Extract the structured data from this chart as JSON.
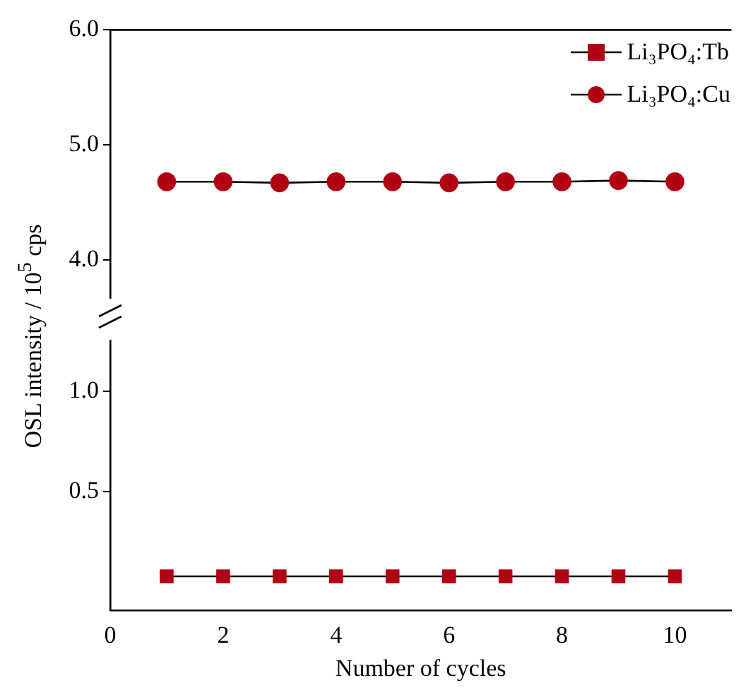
{
  "chart_data": [
    {
      "type": "line",
      "x": [
        1,
        2,
        3,
        4,
        5,
        6,
        7,
        8,
        9,
        10
      ],
      "xlim": [
        0,
        11
      ],
      "xticks": [
        0,
        2,
        4,
        6,
        8,
        10
      ],
      "ylim": [
        3.67,
        6
      ],
      "yticks": [
        {
          "value": 4,
          "label": "4.0"
        },
        {
          "value": 5,
          "label": "5.0"
        },
        {
          "value": 6,
          "label": "6.0"
        }
      ],
      "tick_labels": "y",
      "legend": "top right",
      "grid": false,
      "series": [
        {
          "name": "Li₃PO₄:Tb",
          "color": "#b00012",
          "marker": "square",
          "values": [
            null,
            null,
            null,
            null,
            null,
            null,
            null,
            null,
            null,
            null
          ]
        },
        {
          "name": "Li₃PO₄:Cu",
          "color": "#b00012",
          "marker": "circle",
          "values": [
            4.68,
            4.68,
            4.67,
            4.68,
            4.68,
            4.67,
            4.68,
            4.68,
            4.69,
            4.68
          ]
        }
      ]
    },
    {
      "type": "line",
      "x": [
        1,
        2,
        3,
        4,
        5,
        6,
        7,
        8,
        9,
        10
      ],
      "xlim": [
        0,
        11
      ],
      "xticks": [
        0,
        2,
        4,
        6,
        8,
        10
      ],
      "ylim": [
        -0.09,
        1.25
      ],
      "yticks": [
        {
          "value": 0.5,
          "label": "0.5"
        },
        {
          "value": 1,
          "label": "1.0"
        }
      ],
      "xlabel": "Number of cycles",
      "ylabel": "OSL intensity / 10$^{5}$ cps",
      "grid": false,
      "series": [
        {
          "color": "#b00012",
          "marker": "square",
          "values": [
            0.08,
            0.08,
            0.08,
            0.08,
            0.08,
            0.08,
            0.08,
            0.08,
            0.08,
            0.08
          ]
        },
        {
          "color": "#b00012",
          "marker": "circle",
          "values": [
            null,
            null,
            null,
            null,
            null,
            null,
            null,
            null,
            null,
            null
          ]
        }
      ]
    }
  ]
}
